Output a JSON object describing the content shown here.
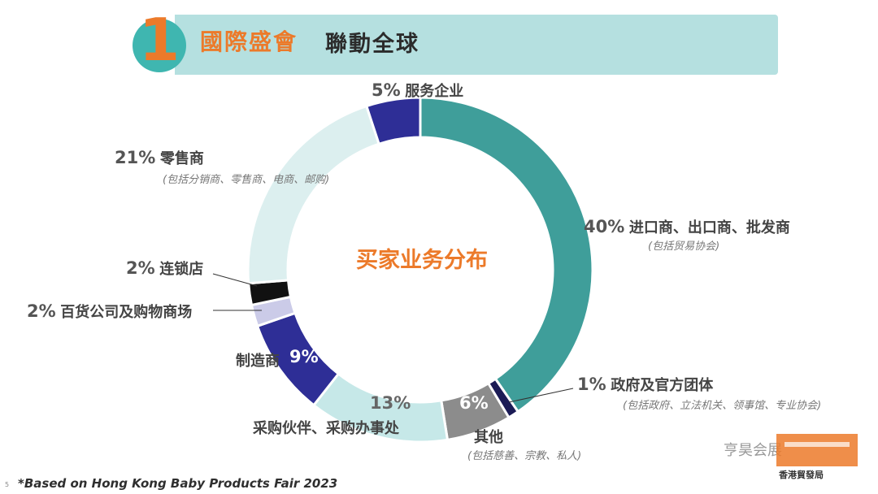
{
  "header": {
    "number": "1",
    "title": "國際盛會",
    "subtitle": "聯動全球"
  },
  "chart_data": {
    "type": "pie",
    "title": "买家业务分布",
    "slices": [
      {
        "label": "进口商、出口商、批发商",
        "pct_label": "40%",
        "value": 40,
        "note": "(包括贸易协会)",
        "color": "#3f9e9a"
      },
      {
        "label": "政府及官方团体",
        "pct_label": "1%",
        "value": 1,
        "note": "(包括政府、立法机关、领事馆、专业协会)",
        "color": "#1b1b55"
      },
      {
        "label": "其他",
        "pct_label": "6%",
        "value": 6,
        "note": "(包括慈善、宗教、私人)",
        "color": "#8c8c8c"
      },
      {
        "label": "采购伙伴、采购办事处",
        "pct_label": "13%",
        "value": 13,
        "note": "",
        "color": "#c6e8e8"
      },
      {
        "label": "制造商",
        "pct_label": "9%",
        "value": 9,
        "note": "",
        "color": "#2e2e96"
      },
      {
        "label": "百货公司及购物商场",
        "pct_label": "2%",
        "value": 2,
        "note": "",
        "color": "#cbcbe8"
      },
      {
        "label": "连锁店",
        "pct_label": "2%",
        "value": 2,
        "note": "",
        "color": "#111111"
      },
      {
        "label": "零售商",
        "pct_label": "21%",
        "value": 21,
        "note": "(包括分销商、零售商、电商、邮购)",
        "color": "#dcefef"
      },
      {
        "label": "服务企业",
        "pct_label": "5%",
        "value": 5,
        "note": "",
        "color": "#2e2e96"
      }
    ]
  },
  "footnote": "*Based on Hong Kong Baby Products Fair 2023",
  "page_number": "5",
  "watermark": "亨昊会展",
  "logo_text": "香港貿發局"
}
